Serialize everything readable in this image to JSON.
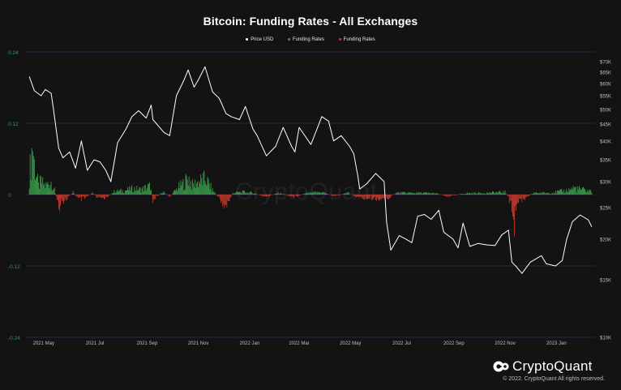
{
  "chart_data": {
    "type": "line",
    "title": "Bitcoin: Funding Rates - All Exchanges",
    "legend": [
      {
        "name": "Price USD",
        "color": "#ffffff"
      },
      {
        "name": "Funding Rates",
        "color": "#3a9a4a"
      },
      {
        "name": "Funding Rates",
        "color": "#c0392b"
      }
    ],
    "legend_position": "top-center",
    "x_tick_labels": [
      "2021 May",
      "2021 Jul",
      "2021 Sep",
      "2021 Nov",
      "2022 Jan",
      "2022 Mar",
      "2022 May",
      "2022 Jul",
      "2022 Sep",
      "2022 Nov",
      "2023 Jan"
    ],
    "x_tick_dates": [
      "2021-05-01",
      "2021-07-01",
      "2021-09-01",
      "2021-11-01",
      "2022-01-01",
      "2022-03-01",
      "2022-05-01",
      "2022-07-01",
      "2022-09-01",
      "2022-11-01",
      "2023-01-01"
    ],
    "left_axis": {
      "ticks": [
        "0.24",
        "0.12",
        "0",
        "-0.12",
        "-0.24"
      ],
      "tick_values": [
        0.24,
        0.12,
        0,
        -0.12,
        -0.24
      ],
      "range": [
        -0.24,
        0.24
      ],
      "color": "#3a9a4a"
    },
    "right_axis": {
      "scale": "log",
      "ticks": [
        "$70K",
        "$65K",
        "$60K",
        "$55K",
        "$50K",
        "$45K",
        "$40K",
        "$35K",
        "$30K",
        "$25K",
        "$20K",
        "$15K",
        "$10K"
      ],
      "tick_values": [
        70000,
        65000,
        60000,
        55000,
        50000,
        45000,
        40000,
        35000,
        30000,
        25000,
        20000,
        15000,
        10000
      ],
      "range": [
        10000,
        70000
      ]
    },
    "grid": "horizontal lines at left-axis ticks",
    "price_series": {
      "name": "Price USD",
      "points": [
        [
          "2021-04-14",
          63000
        ],
        [
          "2021-04-20",
          57000
        ],
        [
          "2021-04-28",
          55000
        ],
        [
          "2021-05-03",
          57500
        ],
        [
          "2021-05-10",
          56000
        ],
        [
          "2021-05-13",
          49500
        ],
        [
          "2021-05-19",
          38000
        ],
        [
          "2021-05-24",
          35500
        ],
        [
          "2021-06-01",
          37000
        ],
        [
          "2021-06-08",
          33000
        ],
        [
          "2021-06-15",
          40000
        ],
        [
          "2021-06-22",
          32500
        ],
        [
          "2021-06-30",
          35000
        ],
        [
          "2021-07-07",
          34500
        ],
        [
          "2021-07-14",
          32500
        ],
        [
          "2021-07-20",
          30000
        ],
        [
          "2021-07-28",
          39500
        ],
        [
          "2021-08-07",
          43500
        ],
        [
          "2021-08-14",
          47500
        ],
        [
          "2021-08-22",
          49500
        ],
        [
          "2021-08-31",
          47000
        ],
        [
          "2021-09-06",
          51500
        ],
        [
          "2021-09-08",
          46500
        ],
        [
          "2021-09-21",
          42500
        ],
        [
          "2021-09-28",
          41500
        ],
        [
          "2021-10-06",
          55000
        ],
        [
          "2021-10-15",
          61500
        ],
        [
          "2021-10-20",
          66000
        ],
        [
          "2021-10-27",
          58500
        ],
        [
          "2021-11-01",
          61500
        ],
        [
          "2021-11-09",
          67500
        ],
        [
          "2021-11-18",
          56500
        ],
        [
          "2021-11-26",
          54000
        ],
        [
          "2021-12-04",
          48500
        ],
        [
          "2021-12-10",
          47500
        ],
        [
          "2021-12-20",
          46500
        ],
        [
          "2021-12-27",
          51000
        ],
        [
          "2022-01-05",
          43500
        ],
        [
          "2022-01-10",
          41500
        ],
        [
          "2022-01-21",
          36000
        ],
        [
          "2022-02-01",
          38500
        ],
        [
          "2022-02-10",
          44000
        ],
        [
          "2022-02-20",
          38500
        ],
        [
          "2022-02-24",
          37000
        ],
        [
          "2022-03-01",
          44000
        ],
        [
          "2022-03-15",
          39000
        ],
        [
          "2022-03-28",
          47500
        ],
        [
          "2022-04-05",
          46000
        ],
        [
          "2022-04-11",
          40000
        ],
        [
          "2022-04-20",
          41500
        ],
        [
          "2022-04-30",
          38500
        ],
        [
          "2022-05-05",
          36500
        ],
        [
          "2022-05-10",
          31000
        ],
        [
          "2022-05-12",
          28500
        ],
        [
          "2022-05-20",
          29500
        ],
        [
          "2022-05-31",
          31800
        ],
        [
          "2022-06-10",
          30000
        ],
        [
          "2022-06-13",
          22500
        ],
        [
          "2022-06-18",
          18500
        ],
        [
          "2022-06-28",
          20500
        ],
        [
          "2022-07-06",
          20000
        ],
        [
          "2022-07-13",
          19500
        ],
        [
          "2022-07-20",
          23500
        ],
        [
          "2022-07-28",
          23800
        ],
        [
          "2022-08-05",
          23000
        ],
        [
          "2022-08-14",
          24500
        ],
        [
          "2022-08-20",
          21000
        ],
        [
          "2022-08-31",
          20000
        ],
        [
          "2022-09-06",
          18800
        ],
        [
          "2022-09-12",
          22400
        ],
        [
          "2022-09-20",
          19000
        ],
        [
          "2022-09-30",
          19400
        ],
        [
          "2022-10-10",
          19200
        ],
        [
          "2022-10-20",
          19100
        ],
        [
          "2022-10-28",
          20600
        ],
        [
          "2022-11-05",
          21300
        ],
        [
          "2022-11-09",
          17000
        ],
        [
          "2022-11-14",
          16500
        ],
        [
          "2022-11-21",
          15700
        ],
        [
          "2022-12-01",
          17000
        ],
        [
          "2022-12-14",
          17800
        ],
        [
          "2022-12-20",
          16800
        ],
        [
          "2022-12-31",
          16550
        ],
        [
          "2023-01-08",
          17200
        ],
        [
          "2023-01-13",
          19900
        ],
        [
          "2023-01-20",
          22600
        ],
        [
          "2023-01-29",
          23700
        ],
        [
          "2023-02-02",
          23400
        ],
        [
          "2023-02-08",
          22900
        ],
        [
          "2023-02-12",
          21800
        ]
      ]
    },
    "funding_rate_series": {
      "name": "Funding Rates",
      "points": [
        [
          "2021-04-14",
          0.04
        ],
        [
          "2021-04-17",
          0.1
        ],
        [
          "2021-04-18",
          0.12
        ],
        [
          "2021-04-20",
          0.07
        ],
        [
          "2021-04-22",
          0.05
        ],
        [
          "2021-04-25",
          0.02
        ],
        [
          "2021-04-28",
          0.03
        ],
        [
          "2021-05-03",
          0.02
        ],
        [
          "2021-05-10",
          0.03
        ],
        [
          "2021-05-14",
          0.01
        ],
        [
          "2021-05-19",
          -0.03
        ],
        [
          "2021-05-22",
          -0.01
        ],
        [
          "2021-05-26",
          -0.015
        ],
        [
          "2021-06-05",
          0.006
        ],
        [
          "2021-06-12",
          -0.012
        ],
        [
          "2021-06-20",
          -0.008
        ],
        [
          "2021-06-28",
          0.005
        ],
        [
          "2021-07-05",
          -0.01
        ],
        [
          "2021-07-15",
          -0.006
        ],
        [
          "2021-07-25",
          0.008
        ],
        [
          "2021-08-05",
          0.009
        ],
        [
          "2021-08-15",
          0.014
        ],
        [
          "2021-08-25",
          0.012
        ],
        [
          "2021-09-05",
          0.02
        ],
        [
          "2021-09-08",
          -0.012
        ],
        [
          "2021-09-20",
          0.006
        ],
        [
          "2021-09-28",
          -0.004
        ],
        [
          "2021-10-08",
          0.016
        ],
        [
          "2021-10-16",
          0.028
        ],
        [
          "2021-10-20",
          0.04
        ],
        [
          "2021-10-25",
          0.022
        ],
        [
          "2021-11-02",
          0.03
        ],
        [
          "2021-11-10",
          0.036
        ],
        [
          "2021-11-18",
          0.01
        ],
        [
          "2021-11-26",
          -0.008
        ],
        [
          "2021-12-04",
          -0.03
        ],
        [
          "2021-12-12",
          0.004
        ],
        [
          "2021-12-25",
          0.006
        ],
        [
          "2022-01-05",
          0.004
        ],
        [
          "2022-01-20",
          -0.006
        ],
        [
          "2022-02-05",
          0.004
        ],
        [
          "2022-02-22",
          -0.005
        ],
        [
          "2022-03-10",
          0.003
        ],
        [
          "2022-03-28",
          0.006
        ],
        [
          "2022-04-12",
          -0.004
        ],
        [
          "2022-04-28",
          0.004
        ],
        [
          "2022-05-12",
          -0.008
        ],
        [
          "2022-06-13",
          -0.01
        ],
        [
          "2022-06-25",
          0.004
        ],
        [
          "2022-07-20",
          0.004
        ],
        [
          "2022-08-10",
          0.003
        ],
        [
          "2022-08-25",
          -0.004
        ],
        [
          "2022-09-15",
          0.003
        ],
        [
          "2022-10-10",
          0.004
        ],
        [
          "2022-11-01",
          0.006
        ],
        [
          "2022-11-08",
          -0.02
        ],
        [
          "2022-11-10",
          -0.05
        ],
        [
          "2022-11-12",
          -0.075
        ],
        [
          "2022-11-14",
          -0.03
        ],
        [
          "2022-11-20",
          -0.012
        ],
        [
          "2022-12-05",
          0.004
        ],
        [
          "2022-12-25",
          0.004
        ],
        [
          "2023-01-14",
          0.01
        ],
        [
          "2023-01-22",
          0.016
        ],
        [
          "2023-01-30",
          0.012
        ],
        [
          "2023-02-12",
          0.008
        ]
      ]
    }
  },
  "brand": {
    "name": "CryptoQuant",
    "copyright": "© 2022. CryptoQuant All rights reserved."
  }
}
